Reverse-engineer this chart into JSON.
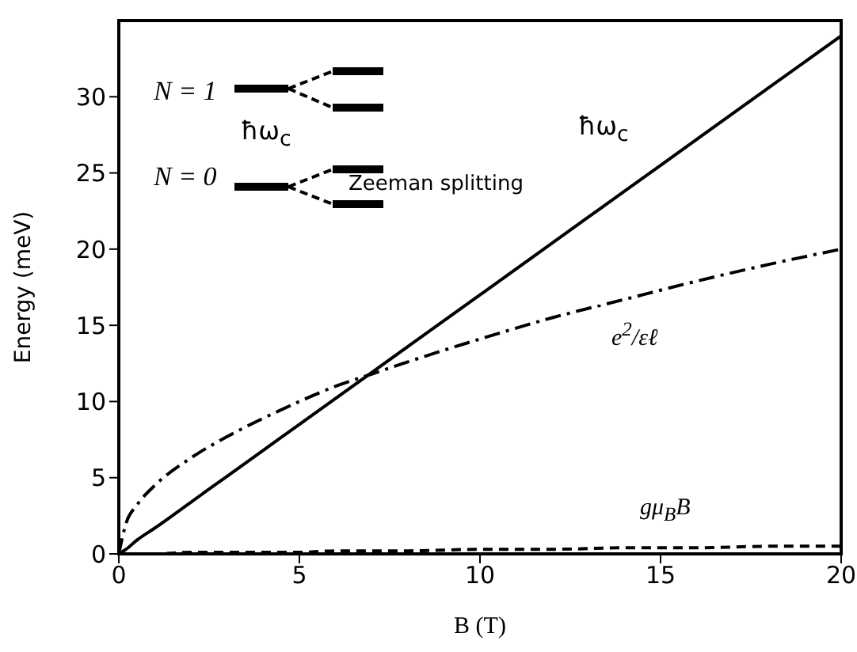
{
  "chart_data": {
    "type": "line",
    "xlabel": "B (T)",
    "ylabel": "Energy (meV)",
    "x": [
      0,
      0.2,
      0.5,
      1,
      2,
      3,
      4,
      5,
      6,
      7,
      8,
      10,
      12,
      14,
      16,
      18,
      20
    ],
    "xlim": [
      0,
      20
    ],
    "xticks": [
      0,
      5,
      10,
      15,
      20
    ],
    "ylim": [
      0,
      35
    ],
    "yticks": [
      0,
      5,
      10,
      15,
      20,
      25,
      30
    ],
    "grid": false,
    "legend": false,
    "marker": "none",
    "series": [
      {
        "color": "#000000",
        "line_style": "solid",
        "values": [
          0,
          0.3,
          0.9,
          1.7,
          3.4,
          5.1,
          6.8,
          8.5,
          10.2,
          11.9,
          13.6,
          17,
          20.4,
          23.8,
          27.2,
          30.6,
          34
        ]
      },
      {
        "color": "#000000",
        "line_style": "dashdot",
        "values": [
          0,
          2,
          3.2,
          4.5,
          6.3,
          7.7,
          8.9,
          10,
          11,
          11.8,
          12.6,
          14.1,
          15.5,
          16.7,
          17.9,
          19,
          20
        ]
      },
      {
        "color": "#000000",
        "line_style": "dashed",
        "values": [
          0,
          0,
          0,
          0,
          0.1,
          0.1,
          0.1,
          0.1,
          0.2,
          0.2,
          0.2,
          0.3,
          0.3,
          0.4,
          0.4,
          0.5,
          0.5
        ]
      }
    ],
    "annotations": [
      "ħω$_{c}$",
      "e$^{2}$/εℓ",
      "gμ$_{B}$B",
      "N = 1",
      "N = 0",
      "ħω$_{c}$",
      "Zeeman splitting"
    ]
  }
}
